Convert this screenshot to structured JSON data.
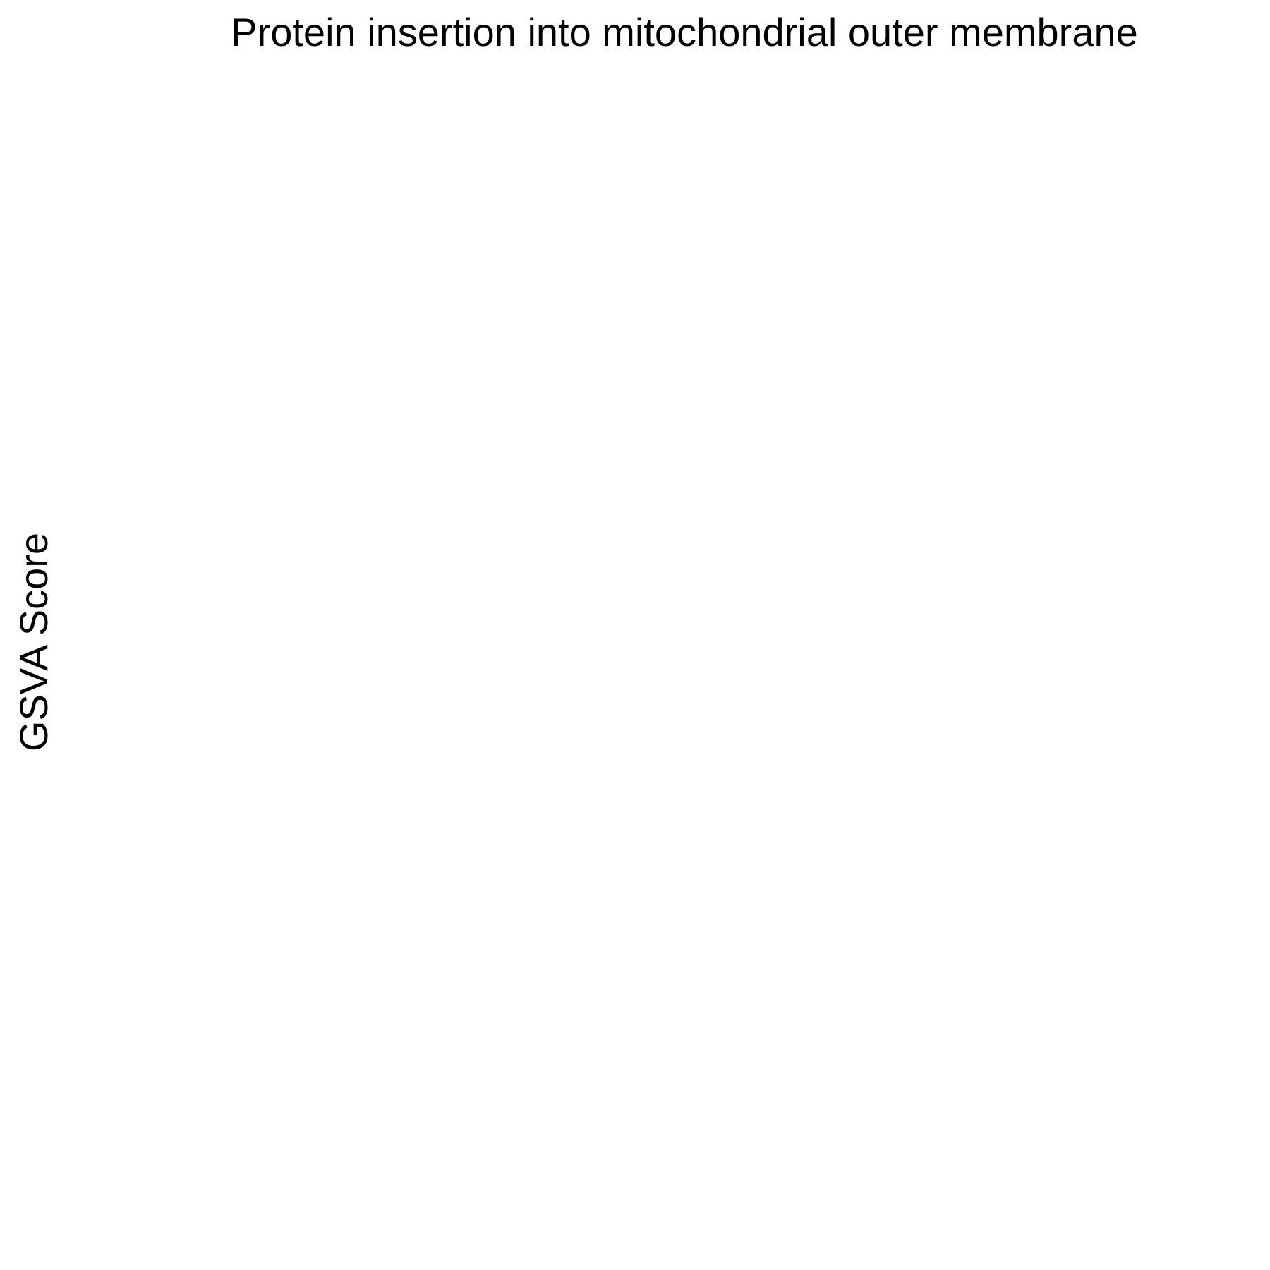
{
  "chart_data": {
    "type": "scatter",
    "title": "Protein insertion into mitochondrial outer membrane",
    "xlabel": "",
    "ylabel": "GSVA Score",
    "series": [],
    "grid": false
  }
}
